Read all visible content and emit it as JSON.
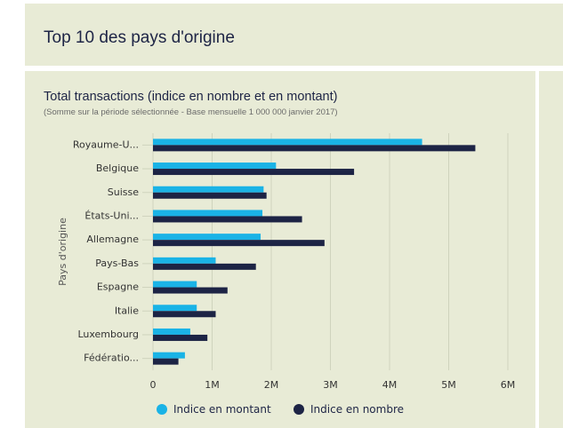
{
  "header": {
    "title": "Top 10 des pays d'origine"
  },
  "chart": {
    "title": "Total transactions (indice en nombre et en montant)",
    "subtitle": "(Somme sur la période sélectionnée - Base mensuelle 1 000 000 janvier 2017)"
  },
  "chart_data": {
    "type": "bar",
    "orientation": "horizontal",
    "ylabel": "Pays d'origine",
    "categories": [
      "Royaume-U...",
      "Belgique",
      "Suisse",
      "États-Uni...",
      "Allemagne",
      "Pays-Bas",
      "Espagne",
      "Italie",
      "Luxembourg",
      "Fédératio..."
    ],
    "series": [
      {
        "name": "Indice en montant",
        "color": "#1ab3e6",
        "values": [
          4550000,
          2080000,
          1870000,
          1850000,
          1820000,
          1060000,
          740000,
          740000,
          630000,
          540000
        ]
      },
      {
        "name": "Indice en nombre",
        "color": "#1d2445",
        "values": [
          5450000,
          3400000,
          1920000,
          2520000,
          2900000,
          1740000,
          1260000,
          1060000,
          920000,
          430000
        ]
      }
    ],
    "xlim": [
      0,
      6000000
    ],
    "xticks": [
      0,
      1000000,
      2000000,
      3000000,
      4000000,
      5000000,
      6000000
    ],
    "xtick_labels": [
      "0",
      "1M",
      "2M",
      "3M",
      "4M",
      "5M",
      "6M"
    ],
    "grid": "vertical",
    "legend": "bottom"
  }
}
